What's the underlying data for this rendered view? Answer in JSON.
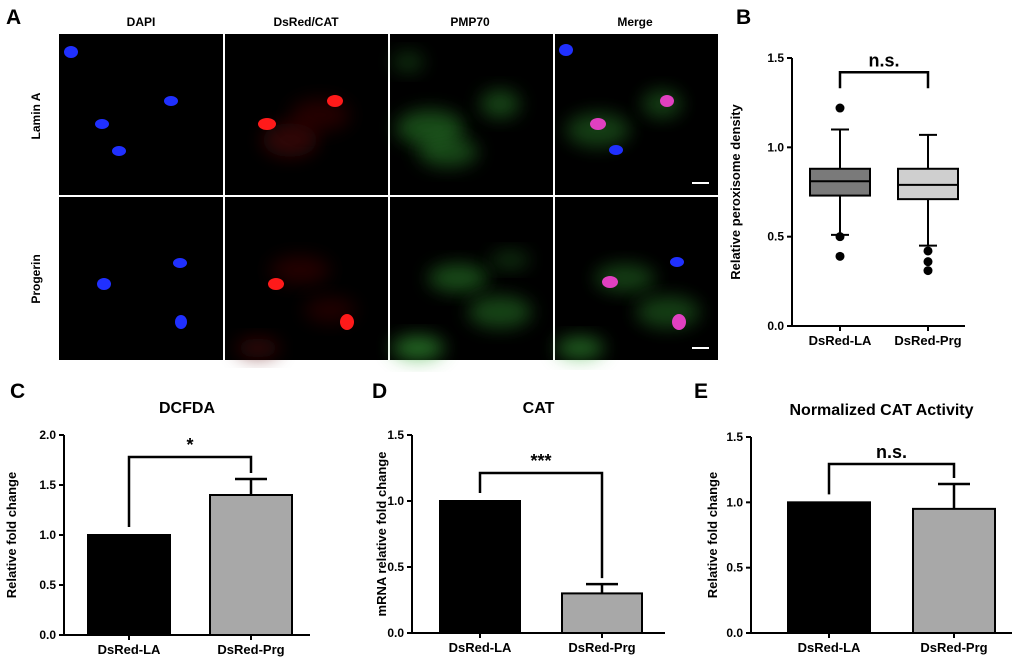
{
  "panel_letters": {
    "a": "A",
    "b": "B",
    "c": "C",
    "d": "D",
    "e": "E"
  },
  "micrograph": {
    "columns": [
      "DAPI",
      "DsRed/CAT",
      "PMP70",
      "Merge"
    ],
    "rows": [
      "Lamin A",
      "Progerin"
    ],
    "colors": {
      "dapi": "#2030ff",
      "dsred": "#ff1a1a",
      "pmp70": "#3db03d",
      "merge": "#e040c0",
      "background": "#000000"
    }
  },
  "chart_data": [
    {
      "panel": "B",
      "type": "box",
      "title": "",
      "xlabel": "",
      "ylabel": "Relative peroxisome density",
      "ylim": [
        0,
        1.5
      ],
      "yticks": [
        "0.0",
        "0.5",
        "1.0",
        "1.5"
      ],
      "categories": [
        "DsRed-LA",
        "DsRed-Prg"
      ],
      "boxes": [
        {
          "category": "DsRed-LA",
          "whisker_low": 0.51,
          "q1": 0.73,
          "median": 0.81,
          "q3": 0.88,
          "whisker_high": 1.1,
          "outliers": [
            1.22,
            0.5,
            0.39
          ],
          "fill": "#7a7a7a"
        },
        {
          "category": "DsRed-Prg",
          "whisker_low": 0.45,
          "q1": 0.71,
          "median": 0.79,
          "q3": 0.88,
          "whisker_high": 1.07,
          "outliers": [
            0.42,
            0.36,
            0.31
          ],
          "fill": "#cfcfcf"
        }
      ],
      "significance": "n.s."
    },
    {
      "panel": "C",
      "type": "bar",
      "title": "DCFDA",
      "xlabel": "",
      "ylabel": "Relative fold change",
      "ylim": [
        0,
        2.0
      ],
      "yticks": [
        "0.0",
        "0.5",
        "1.0",
        "1.5",
        "2.0"
      ],
      "categories": [
        "DsRed-LA",
        "DsRed-Prg"
      ],
      "values": [
        1.0,
        1.4
      ],
      "errors": [
        0,
        0.16
      ],
      "colors": [
        "#000000",
        "#a8a8a8"
      ],
      "significance": "*"
    },
    {
      "panel": "D",
      "type": "bar",
      "title": "CAT",
      "xlabel": "",
      "ylabel": "mRNA relative fold change",
      "ylim": [
        0,
        1.5
      ],
      "yticks": [
        "0.0",
        "0.5",
        "1.0",
        "1.5"
      ],
      "categories": [
        "DsRed-LA",
        "DsRed-Prg"
      ],
      "values": [
        1.0,
        0.3
      ],
      "errors": [
        0,
        0.07
      ],
      "colors": [
        "#000000",
        "#a8a8a8"
      ],
      "significance": "***"
    },
    {
      "panel": "E",
      "type": "bar",
      "title": "Normalized CAT Activity",
      "xlabel": "",
      "ylabel": "Relative fold change",
      "ylim": [
        0,
        1.5
      ],
      "yticks": [
        "0.0",
        "0.5",
        "1.0",
        "1.5"
      ],
      "categories": [
        "DsRed-LA",
        "DsRed-Prg"
      ],
      "values": [
        1.0,
        0.95
      ],
      "errors": [
        0,
        0.19
      ],
      "colors": [
        "#000000",
        "#a8a8a8"
      ],
      "significance": "n.s."
    }
  ]
}
